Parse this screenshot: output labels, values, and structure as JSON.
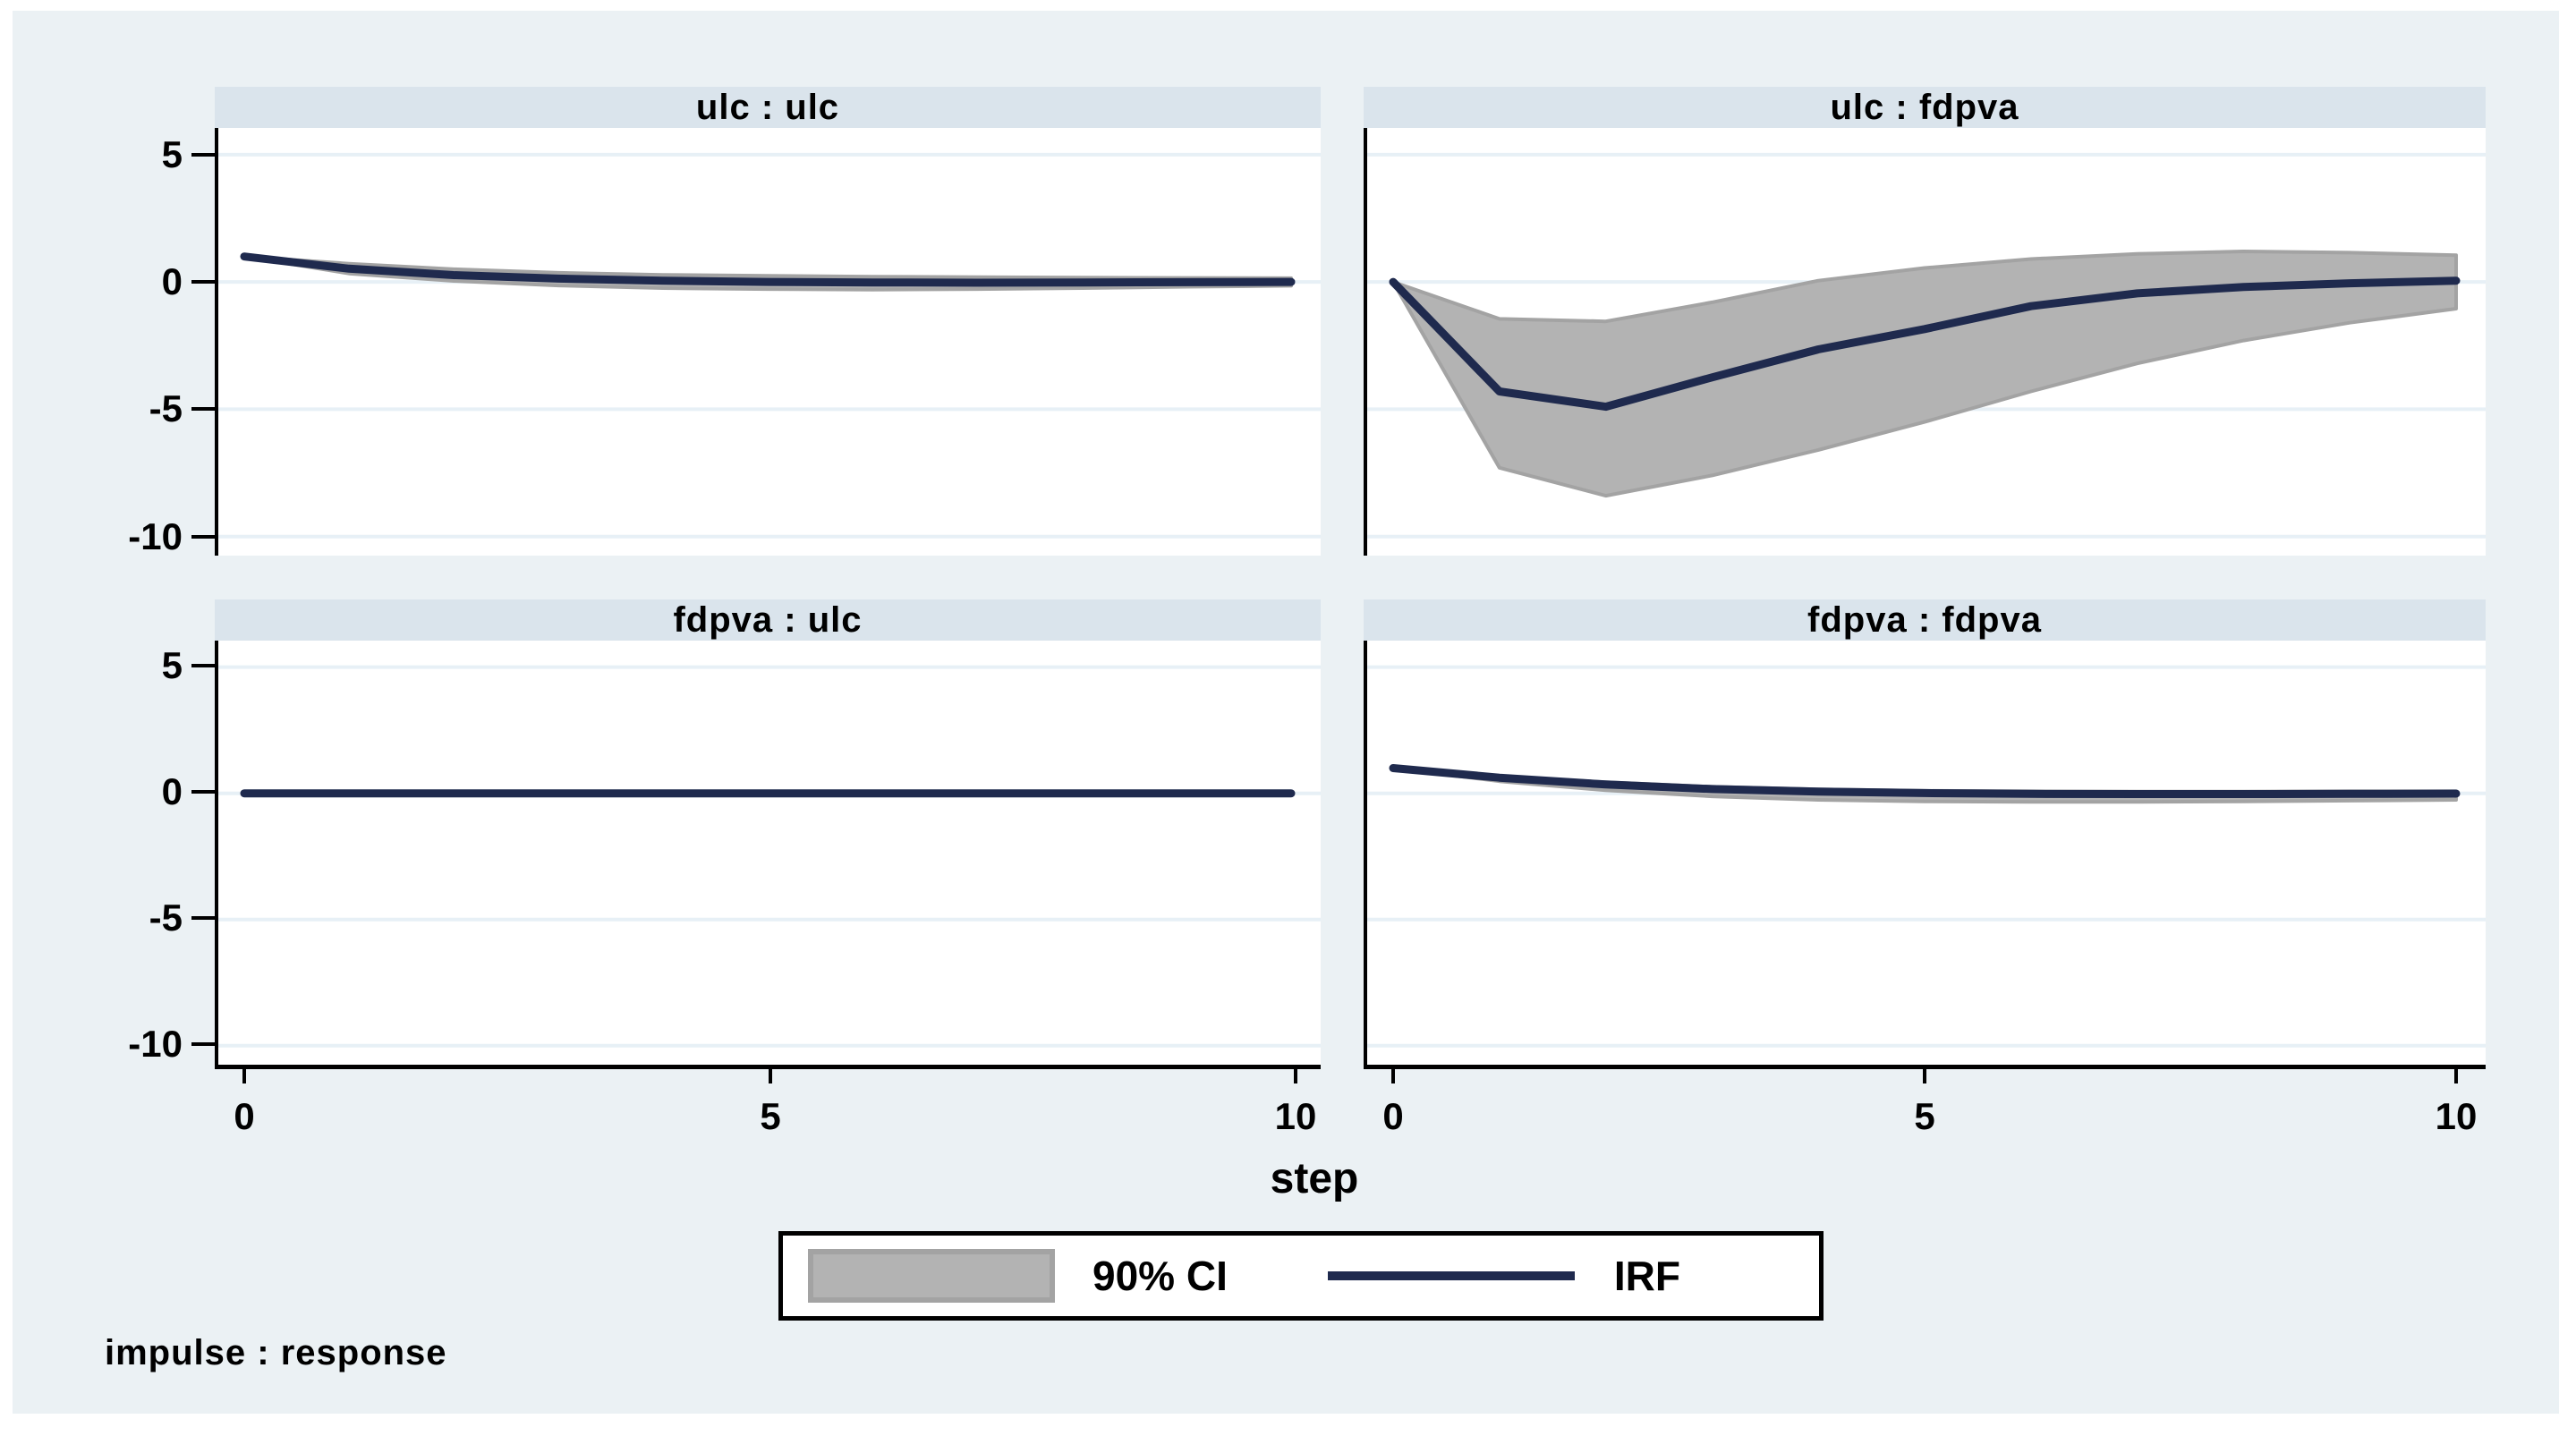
{
  "figure": {
    "xlabel": "step",
    "caption": "impulse : response",
    "legend": {
      "ci_label": "90% CI",
      "irf_label": "IRF"
    }
  },
  "colors": {
    "figure_bg": "#ebf1f4",
    "strip_bg": "#dae4ec",
    "plot_bg": "#ffffff",
    "gridline": "#e7f0f6",
    "axis": "#000000",
    "irf_line": "#1f2a4e",
    "ci_fill": "#b3b3b3",
    "ci_edge": "#a3a3a3"
  },
  "chart_data": {
    "type": "line",
    "layout": "2x2-panel-grid",
    "x": [
      0,
      1,
      2,
      3,
      4,
      5,
      6,
      7,
      8,
      9,
      10
    ],
    "xlabel": "step",
    "caption": "impulse : response",
    "ylim": [
      -10.75,
      6.05
    ],
    "xlim_pad": 0.28,
    "yticks": [
      5,
      0,
      -5,
      -10
    ],
    "xticks": [
      0,
      5,
      10
    ],
    "grid": true,
    "legend_position": "bottom-center",
    "legend": [
      "90% CI",
      "IRF"
    ],
    "panels": [
      {
        "title": "ulc : ulc",
        "impulse": "ulc",
        "response": "ulc",
        "irf": [
          1.0,
          0.52,
          0.27,
          0.13,
          0.05,
          0.0,
          -0.02,
          -0.03,
          -0.02,
          -0.01,
          0.0
        ],
        "ci_lower": [
          1.0,
          0.33,
          0.04,
          -0.14,
          -0.24,
          -0.28,
          -0.3,
          -0.28,
          -0.24,
          -0.19,
          -0.15
        ],
        "ci_upper": [
          1.0,
          0.72,
          0.5,
          0.36,
          0.28,
          0.24,
          0.21,
          0.19,
          0.17,
          0.16,
          0.15
        ]
      },
      {
        "title": "ulc : fdpva",
        "impulse": "ulc",
        "response": "fdpva",
        "irf": [
          0.0,
          -4.3,
          -4.9,
          -3.75,
          -2.65,
          -1.85,
          -0.95,
          -0.45,
          -0.2,
          -0.05,
          0.05
        ],
        "ci_lower": [
          0.0,
          -7.3,
          -8.4,
          -7.6,
          -6.6,
          -5.5,
          -4.3,
          -3.2,
          -2.3,
          -1.6,
          -1.05
        ],
        "ci_upper": [
          0.0,
          -1.45,
          -1.55,
          -0.8,
          0.05,
          0.55,
          0.9,
          1.1,
          1.2,
          1.15,
          1.05
        ]
      },
      {
        "title": "fdpva : ulc",
        "impulse": "fdpva",
        "response": "ulc",
        "irf": [
          0.0,
          0.0,
          0.0,
          0.0,
          0.0,
          0.0,
          0.0,
          0.0,
          0.0,
          0.0,
          0.0
        ],
        "ci_lower": [
          0.0,
          -0.05,
          -0.06,
          -0.07,
          -0.07,
          -0.07,
          -0.07,
          -0.07,
          -0.07,
          -0.07,
          -0.07
        ],
        "ci_upper": [
          0.0,
          0.05,
          0.06,
          0.07,
          0.07,
          0.07,
          0.07,
          0.07,
          0.07,
          0.07,
          0.07
        ]
      },
      {
        "title": "fdpva : fdpva",
        "impulse": "fdpva",
        "response": "fdpva",
        "irf": [
          1.0,
          0.62,
          0.35,
          0.17,
          0.07,
          0.01,
          -0.02,
          -0.03,
          -0.03,
          -0.02,
          -0.01
        ],
        "ci_lower": [
          1.0,
          0.48,
          0.12,
          -0.12,
          -0.26,
          -0.32,
          -0.34,
          -0.34,
          -0.32,
          -0.29,
          -0.26
        ],
        "ci_upper": [
          1.0,
          0.68,
          0.44,
          0.26,
          0.16,
          0.1,
          0.08,
          0.07,
          0.07,
          0.08,
          0.08
        ]
      }
    ]
  }
}
